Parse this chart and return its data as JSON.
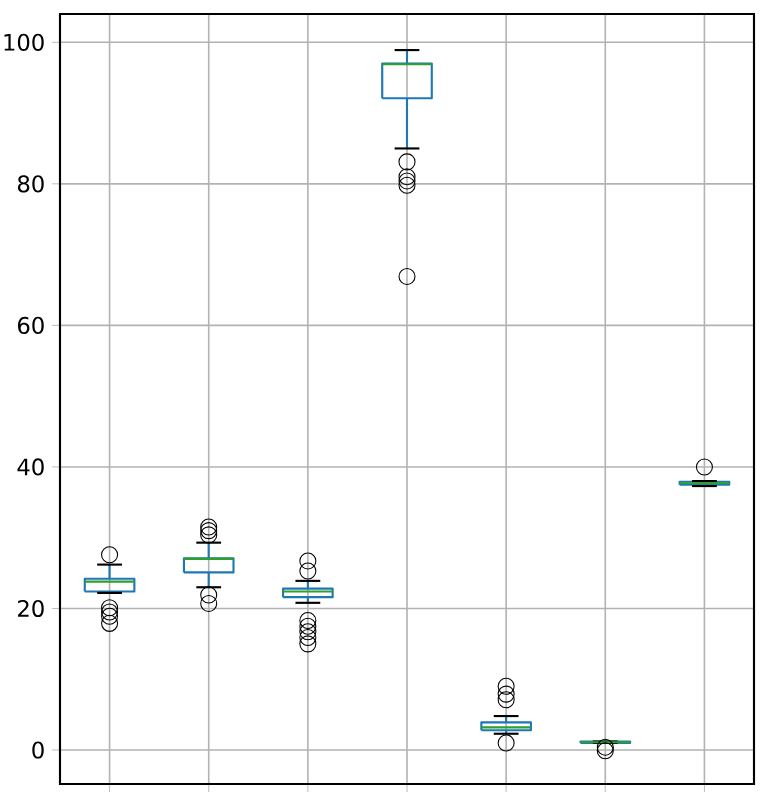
{
  "chart_data": {
    "type": "box",
    "categories": [
      null,
      null,
      null,
      null,
      null,
      null,
      null
    ],
    "ylim": [
      -4.8,
      104
    ],
    "yticks": [
      0,
      20,
      40,
      60,
      80,
      100
    ],
    "grid": true,
    "tick_labels": "y",
    "marker": "circle",
    "series": [
      {
        "color": "#1f77b4",
        "boxes": [
          {
            "low": 22.2,
            "q1": 22.4,
            "median": 23.8,
            "q3": 24.2,
            "high": 26.2,
            "outliers": [
              27.6,
              20.1,
              19.5,
              18.9,
              17.9
            ]
          },
          {
            "low": 23.0,
            "q1": 25.1,
            "median": 27.0,
            "q3": 27.1,
            "high": 29.3,
            "outliers": [
              31.5,
              31.0,
              30.4,
              21.9,
              20.7
            ]
          },
          {
            "low": 20.8,
            "q1": 21.6,
            "median": 22.4,
            "q3": 22.8,
            "high": 23.9,
            "outliers": [
              26.7,
              25.3,
              18.3,
              17.5,
              16.7,
              15.9,
              15.0
            ]
          },
          {
            "low": 85.0,
            "q1": 92.1,
            "median": 96.9,
            "q3": 97.0,
            "high": 98.9,
            "outliers": [
              83.1,
              81.0,
              80.4,
              79.8,
              66.9
            ]
          },
          {
            "low": 2.3,
            "q1": 2.8,
            "median": 3.2,
            "q3": 3.9,
            "high": 4.8,
            "outliers": [
              9.0,
              7.9,
              7.1,
              1.0
            ]
          },
          {
            "low": 1.0,
            "q1": 1.0,
            "median": 1.1,
            "q3": 1.2,
            "high": 1.2,
            "outliers": [
              0.4,
              -0.1
            ]
          },
          {
            "low": 37.3,
            "q1": 37.5,
            "median": 37.7,
            "q3": 37.9,
            "high": 38.0,
            "outliers": [
              40.0
            ]
          }
        ]
      }
    ]
  }
}
